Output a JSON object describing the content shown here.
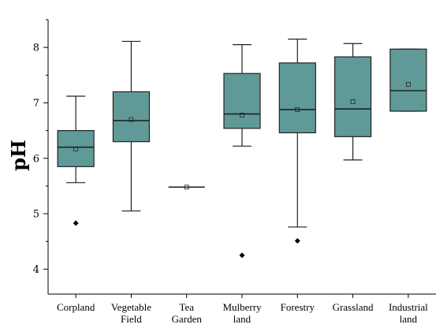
{
  "chart_data": {
    "type": "box",
    "ylabel": "pH",
    "ylim": [
      3.55,
      8.5
    ],
    "yticks": [
      4,
      5,
      6,
      7,
      8
    ],
    "colors": {
      "box_fill": "#5f9a98",
      "stroke": "#222222",
      "outlier": "#000000"
    },
    "categories": [
      {
        "lines": [
          "Corpland"
        ]
      },
      {
        "lines": [
          "Vegetable",
          "Field"
        ]
      },
      {
        "lines": [
          "Tea",
          "Garden"
        ]
      },
      {
        "lines": [
          "Mulberry",
          "land"
        ]
      },
      {
        "lines": [
          "Forestry"
        ]
      },
      {
        "lines": [
          "Grassland"
        ]
      },
      {
        "lines": [
          "Industrial",
          "land"
        ]
      }
    ],
    "boxes": [
      {
        "whisker_low": 5.56,
        "q1": 5.85,
        "median": 6.2,
        "q3": 6.5,
        "whisker_high": 7.12,
        "mean": 6.17,
        "outliers": [
          4.83
        ]
      },
      {
        "whisker_low": 5.05,
        "q1": 6.3,
        "median": 6.68,
        "q3": 7.2,
        "whisker_high": 8.11,
        "mean": 6.7,
        "outliers": []
      },
      {
        "whisker_low": 5.48,
        "q1": 5.48,
        "median": 5.48,
        "q3": 5.48,
        "whisker_high": 5.48,
        "mean": 5.48,
        "outliers": []
      },
      {
        "whisker_low": 6.22,
        "q1": 6.54,
        "median": 6.8,
        "q3": 7.53,
        "whisker_high": 8.05,
        "mean": 6.78,
        "outliers": [
          4.25
        ]
      },
      {
        "whisker_low": 4.76,
        "q1": 6.46,
        "median": 6.88,
        "q3": 7.72,
        "whisker_high": 8.15,
        "mean": 6.88,
        "outliers": [
          4.51
        ]
      },
      {
        "whisker_low": 5.97,
        "q1": 6.39,
        "median": 6.89,
        "q3": 7.83,
        "whisker_high": 8.07,
        "mean": 7.02,
        "outliers": []
      },
      {
        "whisker_low": 6.85,
        "q1": 6.85,
        "median": 7.22,
        "q3": 7.97,
        "whisker_high": 7.97,
        "mean": 7.33,
        "outliers": []
      }
    ]
  }
}
